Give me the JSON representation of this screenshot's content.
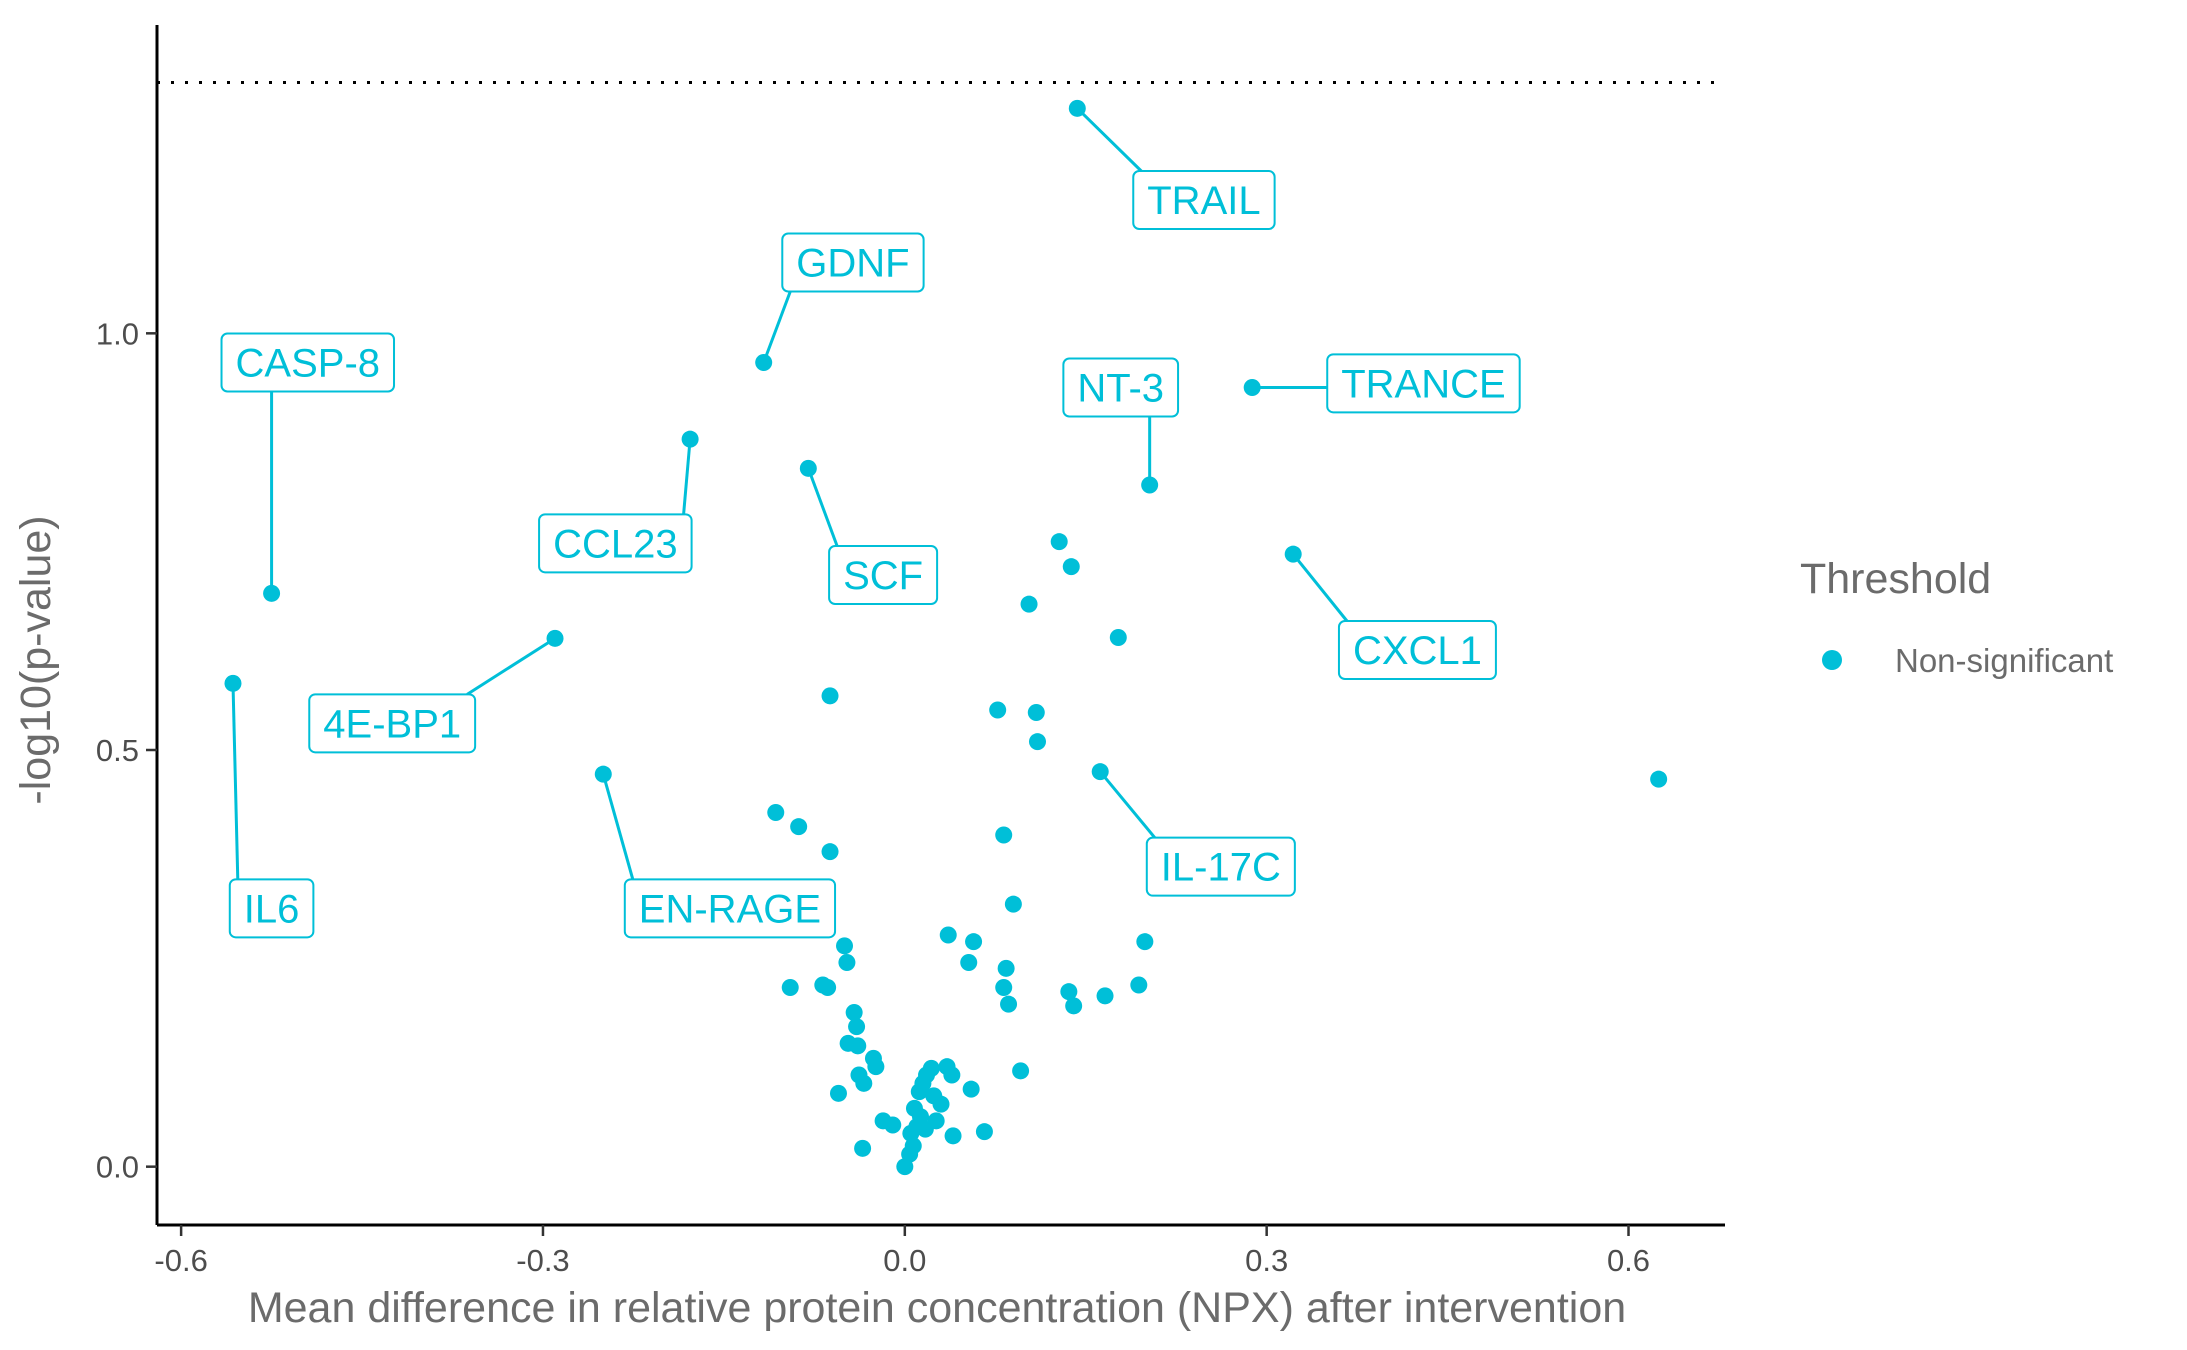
{
  "chart_data": {
    "type": "scatter",
    "title": "",
    "xlabel": "Mean difference in relative protein concentration (NPX) after intervention",
    "ylabel": "-log10(p-value)",
    "xlim": [
      -0.62,
      0.68
    ],
    "ylim": [
      -0.07,
      1.37
    ],
    "x_ticks": [
      -0.6,
      -0.3,
      0.0,
      0.3,
      0.6
    ],
    "x_tick_labels": [
      "-0.6",
      "-0.3",
      "0.0",
      "0.3",
      "0.6"
    ],
    "y_ticks": [
      0.0,
      0.5,
      1.0
    ],
    "y_tick_labels": [
      "0.0",
      "0.5",
      "1.0"
    ],
    "threshold_y": 1.301,
    "grid": false,
    "color": "#00BFD8",
    "legend": {
      "title": "Threshold",
      "position": "right",
      "entries": [
        {
          "label": "Non-significant",
          "color": "#00BFD8"
        }
      ]
    },
    "labeled_points": [
      {
        "label": "TRAIL",
        "x": 0.143,
        "y": 1.27,
        "lx": 0.248,
        "ly": 1.16
      },
      {
        "label": "GDNF",
        "x": -0.117,
        "y": 0.965,
        "lx": -0.043,
        "ly": 1.085
      },
      {
        "label": "CASP-8",
        "x": -0.525,
        "y": 0.688,
        "lx": -0.495,
        "ly": 0.965
      },
      {
        "label": "TRANCE",
        "x": 0.288,
        "y": 0.935,
        "lx": 0.43,
        "ly": 0.94
      },
      {
        "label": "NT-3",
        "x": 0.203,
        "y": 0.818,
        "lx": 0.179,
        "ly": 0.935
      },
      {
        "label": "CCL23",
        "x": -0.178,
        "y": 0.873,
        "lx": -0.24,
        "ly": 0.748
      },
      {
        "label": "SCF",
        "x": -0.08,
        "y": 0.838,
        "lx": -0.018,
        "ly": 0.71
      },
      {
        "label": "CXCL1",
        "x": 0.322,
        "y": 0.735,
        "lx": 0.425,
        "ly": 0.62
      },
      {
        "label": "4E-BP1",
        "x": -0.29,
        "y": 0.634,
        "lx": -0.425,
        "ly": 0.532
      },
      {
        "label": "IL6",
        "x": -0.557,
        "y": 0.58,
        "lx": -0.525,
        "ly": 0.31
      },
      {
        "label": "EN-RAGE",
        "x": -0.25,
        "y": 0.471,
        "lx": -0.145,
        "ly": 0.31
      },
      {
        "label": "IL-17C",
        "x": 0.162,
        "y": 0.474,
        "lx": 0.262,
        "ly": 0.36
      }
    ],
    "points": [
      {
        "x": 0.625,
        "y": 0.465
      },
      {
        "x": -0.062,
        "y": 0.565
      },
      {
        "x": 0.103,
        "y": 0.675
      },
      {
        "x": 0.128,
        "y": 0.75
      },
      {
        "x": 0.138,
        "y": 0.72
      },
      {
        "x": 0.177,
        "y": 0.635
      },
      {
        "x": 0.077,
        "y": 0.548
      },
      {
        "x": 0.109,
        "y": 0.545
      },
      {
        "x": 0.11,
        "y": 0.51
      },
      {
        "x": -0.107,
        "y": 0.425
      },
      {
        "x": -0.088,
        "y": 0.408
      },
      {
        "x": -0.062,
        "y": 0.378
      },
      {
        "x": 0.082,
        "y": 0.398
      },
      {
        "x": 0.09,
        "y": 0.315
      },
      {
        "x": -0.05,
        "y": 0.265
      },
      {
        "x": -0.048,
        "y": 0.245
      },
      {
        "x": 0.036,
        "y": 0.278
      },
      {
        "x": 0.057,
        "y": 0.27
      },
      {
        "x": 0.053,
        "y": 0.245
      },
      {
        "x": 0.199,
        "y": 0.27
      },
      {
        "x": -0.095,
        "y": 0.215
      },
      {
        "x": -0.068,
        "y": 0.218
      },
      {
        "x": -0.064,
        "y": 0.215
      },
      {
        "x": 0.084,
        "y": 0.238
      },
      {
        "x": 0.082,
        "y": 0.215
      },
      {
        "x": 0.086,
        "y": 0.195
      },
      {
        "x": 0.136,
        "y": 0.21
      },
      {
        "x": 0.14,
        "y": 0.193
      },
      {
        "x": 0.166,
        "y": 0.205
      },
      {
        "x": 0.194,
        "y": 0.218
      },
      {
        "x": -0.042,
        "y": 0.185
      },
      {
        "x": -0.04,
        "y": 0.168
      },
      {
        "x": -0.047,
        "y": 0.148
      },
      {
        "x": -0.039,
        "y": 0.145
      },
      {
        "x": -0.026,
        "y": 0.13
      },
      {
        "x": -0.024,
        "y": 0.12
      },
      {
        "x": -0.038,
        "y": 0.11
      },
      {
        "x": -0.034,
        "y": 0.1
      },
      {
        "x": -0.055,
        "y": 0.088
      },
      {
        "x": 0.022,
        "y": 0.118
      },
      {
        "x": 0.018,
        "y": 0.11
      },
      {
        "x": 0.015,
        "y": 0.1
      },
      {
        "x": 0.035,
        "y": 0.12
      },
      {
        "x": 0.039,
        "y": 0.11
      },
      {
        "x": 0.012,
        "y": 0.09
      },
      {
        "x": 0.024,
        "y": 0.085
      },
      {
        "x": 0.03,
        "y": 0.075
      },
      {
        "x": 0.055,
        "y": 0.093
      },
      {
        "x": 0.096,
        "y": 0.115
      },
      {
        "x": 0.008,
        "y": 0.07
      },
      {
        "x": 0.013,
        "y": 0.06
      },
      {
        "x": -0.018,
        "y": 0.055
      },
      {
        "x": -0.01,
        "y": 0.05
      },
      {
        "x": 0.01,
        "y": 0.048
      },
      {
        "x": 0.017,
        "y": 0.045
      },
      {
        "x": 0.005,
        "y": 0.04
      },
      {
        "x": 0.04,
        "y": 0.037
      },
      {
        "x": 0.066,
        "y": 0.042
      },
      {
        "x": -0.035,
        "y": 0.022
      },
      {
        "x": 0.004,
        "y": 0.015
      },
      {
        "x": 0.0,
        "y": 0.0
      },
      {
        "x": 0.026,
        "y": 0.055
      },
      {
        "x": 0.007,
        "y": 0.025
      }
    ]
  }
}
